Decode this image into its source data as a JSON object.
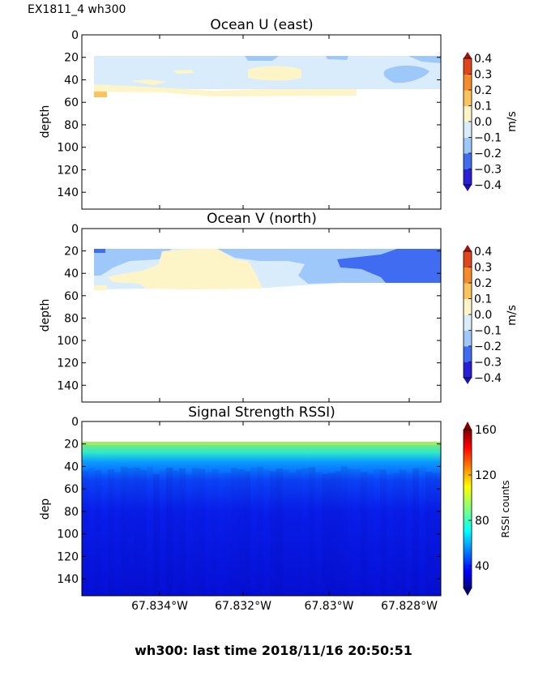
{
  "page": {
    "title": "EX1811_4 wh300",
    "footer": "wh300: last time 2018/11/16 20:50:51"
  },
  "chart_data": [
    {
      "type": "heatmap",
      "title": "Ocean U (east)",
      "ylabel": "depth",
      "ylim": [
        155,
        0
      ],
      "yticks": [
        0,
        20,
        40,
        60,
        80,
        100,
        120,
        140
      ],
      "colorbar": {
        "label": "m/s",
        "ticks": [
          "0.4",
          "0.3",
          "0.2",
          "0.1",
          "0.0",
          "−0.1",
          "−0.2",
          "−0.3",
          "−0.4"
        ],
        "levels": [
          -0.4,
          -0.3,
          -0.2,
          -0.1,
          0.0,
          0.1,
          0.2,
          0.3,
          0.4
        ],
        "colors": [
          "#2a1fd6",
          "#3f6cf0",
          "#9ec8fa",
          "#d8ecfb",
          "#fdf5c8",
          "#fbc35f",
          "#f68b2c",
          "#e0461a"
        ]
      },
      "depth_range_with_data": [
        20,
        55
      ],
      "min_value_band": "-0.2 to -0.1",
      "max_value_band": "0.1 to 0.2"
    },
    {
      "type": "heatmap",
      "title": "Ocean V (north)",
      "ylabel": "depth",
      "ylim": [
        155,
        0
      ],
      "yticks": [
        0,
        20,
        40,
        60,
        80,
        100,
        120,
        140
      ],
      "colorbar": {
        "label": "m/s",
        "ticks": [
          "0.4",
          "0.3",
          "0.2",
          "0.1",
          "0.0",
          "−0.1",
          "−0.2",
          "−0.3",
          "−0.4"
        ],
        "levels": [
          -0.4,
          -0.3,
          -0.2,
          -0.1,
          0.0,
          0.1,
          0.2,
          0.3,
          0.4
        ],
        "colors": [
          "#2a1fd6",
          "#3f6cf0",
          "#9ec8fa",
          "#d8ecfb",
          "#fdf5c8",
          "#fbc35f",
          "#f68b2c",
          "#e0461a"
        ]
      },
      "depth_range_with_data": [
        20,
        55
      ],
      "min_value_band": "-0.3 to -0.2",
      "max_value_band": "0.0 to 0.1"
    },
    {
      "type": "heatmap",
      "title": "Signal Strength RSSI)",
      "ylabel": "dep",
      "ylim": [
        155,
        0
      ],
      "yticks": [
        0,
        20,
        40,
        60,
        80,
        100,
        120,
        140
      ],
      "xlabels": [
        "67.834°W",
        "67.832°W",
        "67.83°W",
        "67.828°W"
      ],
      "colorbar": {
        "label": "RSSI counts",
        "ticks": [
          "160",
          "120",
          "80",
          "40"
        ],
        "range": [
          20,
          160
        ]
      },
      "depth_range_with_data": [
        20,
        155
      ],
      "rssi_at_20m": 100,
      "rssi_at_30m": 75,
      "rssi_at_40m": 55,
      "rssi_below_80m": 30
    }
  ]
}
